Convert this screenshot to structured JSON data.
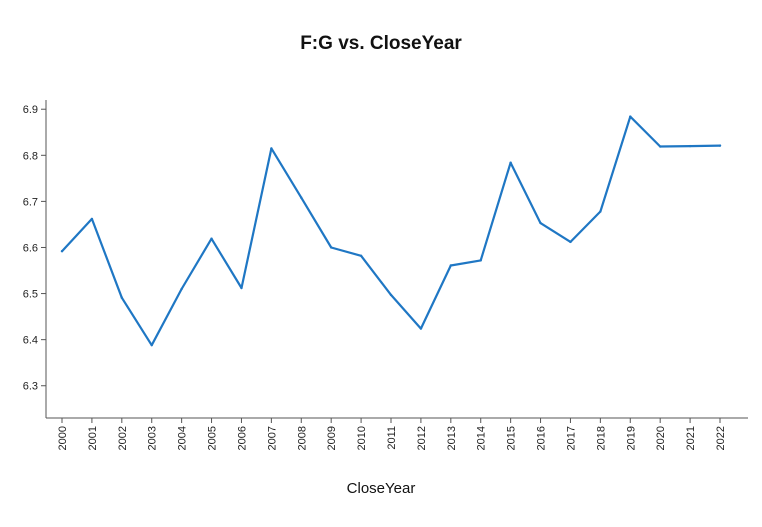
{
  "chart_data": {
    "type": "line",
    "title": "F:G vs. CloseYear",
    "xlabel": "CloseYear",
    "ylabel": "",
    "ylim": [
      6.23,
      6.92
    ],
    "y_ticks": [
      "6.3",
      "6.4",
      "6.5",
      "6.6",
      "6.7",
      "6.8",
      "6.9"
    ],
    "grid": false,
    "categories": [
      "2000",
      "2001",
      "2002",
      "2003",
      "2004",
      "2005",
      "2006",
      "2007",
      "2008",
      "2009",
      "2010",
      "2011",
      "2012",
      "2013",
      "2014",
      "2015",
      "2016",
      "2017",
      "2018",
      "2019",
      "2020",
      "2021",
      "2022"
    ],
    "series": [
      {
        "color": "#1f77c4",
        "values": [
          6.592,
          6.662,
          6.491,
          6.388,
          6.51,
          6.619,
          6.512,
          6.815,
          6.708,
          6.6,
          6.582,
          6.497,
          6.424,
          6.561,
          6.572,
          6.784,
          6.653,
          6.612,
          6.678,
          6.884,
          6.819,
          6.82,
          6.821
        ]
      }
    ]
  }
}
